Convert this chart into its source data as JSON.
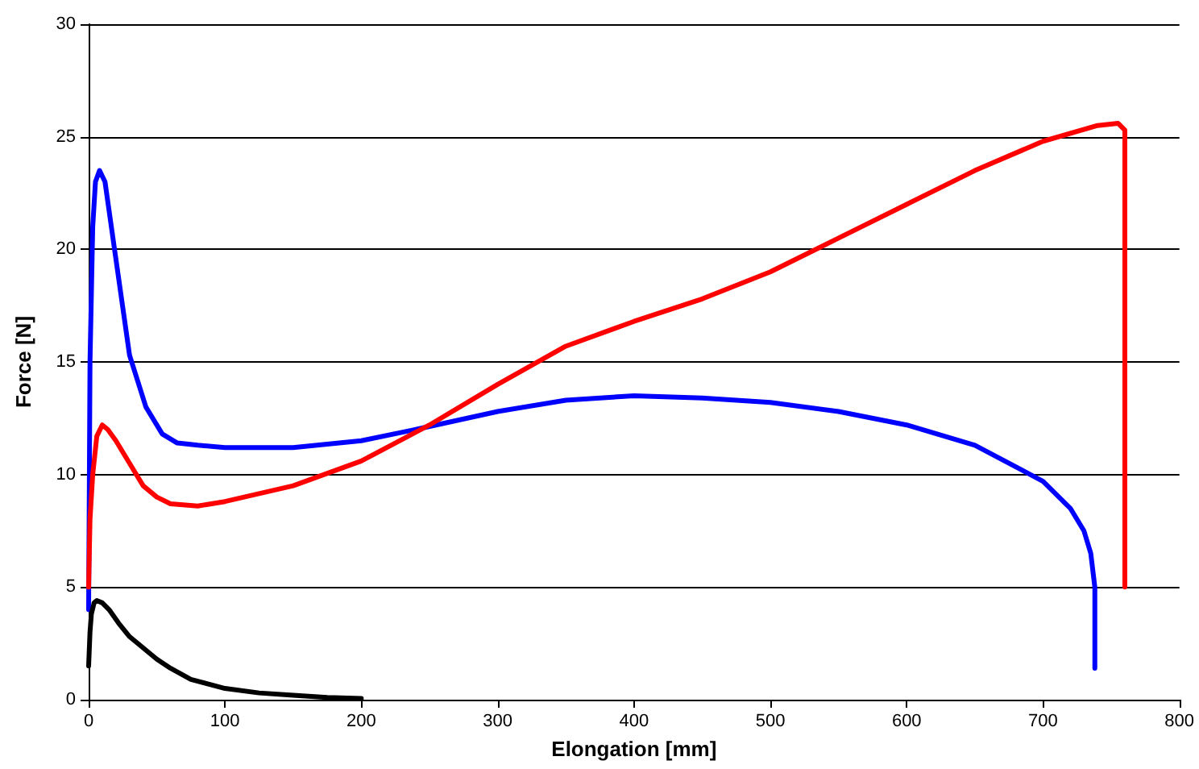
{
  "chart_data": {
    "type": "line",
    "xlabel": "Elongation [mm]",
    "ylabel": "Force [N]",
    "xlim": [
      0,
      800
    ],
    "xticks": [
      0,
      100,
      200,
      300,
      400,
      500,
      600,
      700,
      800
    ],
    "ylim": [
      0,
      30
    ],
    "yticks": [
      0,
      5,
      10,
      15,
      20,
      25,
      30
    ],
    "grid": "y",
    "marker": "none",
    "line_style": "solid",
    "series": [
      {
        "color": "#0000ff",
        "x": [
          0,
          1,
          3,
          5,
          8,
          12,
          19,
          30,
          42,
          54,
          65,
          80,
          100,
          150,
          200,
          240,
          300,
          350,
          400,
          450,
          500,
          550,
          600,
          650,
          700,
          720,
          730,
          735,
          738,
          738
        ],
        "values": [
          4,
          15,
          21,
          23,
          23.5,
          23,
          20,
          15.3,
          13,
          11.8,
          11.4,
          11.3,
          11.2,
          11.2,
          11.5,
          12,
          12.8,
          13.3,
          13.5,
          13.4,
          13.2,
          12.8,
          12.2,
          11.3,
          9.7,
          8.5,
          7.5,
          6.5,
          5,
          1.4
        ]
      },
      {
        "color": "#ff0000",
        "x": [
          0,
          1,
          3,
          6,
          10,
          14,
          20,
          30,
          40,
          50,
          60,
          80,
          100,
          150,
          200,
          250,
          300,
          350,
          400,
          450,
          500,
          550,
          600,
          650,
          700,
          740,
          755,
          760,
          760
        ],
        "values": [
          5,
          8,
          10,
          11.7,
          12.2,
          12,
          11.5,
          10.5,
          9.5,
          9,
          8.7,
          8.6,
          8.8,
          9.5,
          10.6,
          12.2,
          14,
          15.7,
          16.8,
          17.8,
          19,
          20.5,
          22,
          23.5,
          24.8,
          25.5,
          25.6,
          25.3,
          5
        ]
      },
      {
        "color": "#000000",
        "x": [
          0,
          1,
          2,
          4,
          6,
          10,
          15,
          22,
          30,
          40,
          50,
          60,
          75,
          100,
          125,
          150,
          175,
          200
        ],
        "values": [
          1.5,
          3,
          3.8,
          4.3,
          4.4,
          4.3,
          4,
          3.4,
          2.8,
          2.3,
          1.8,
          1.4,
          0.9,
          0.5,
          0.3,
          0.2,
          0.1,
          0.05
        ]
      }
    ]
  }
}
